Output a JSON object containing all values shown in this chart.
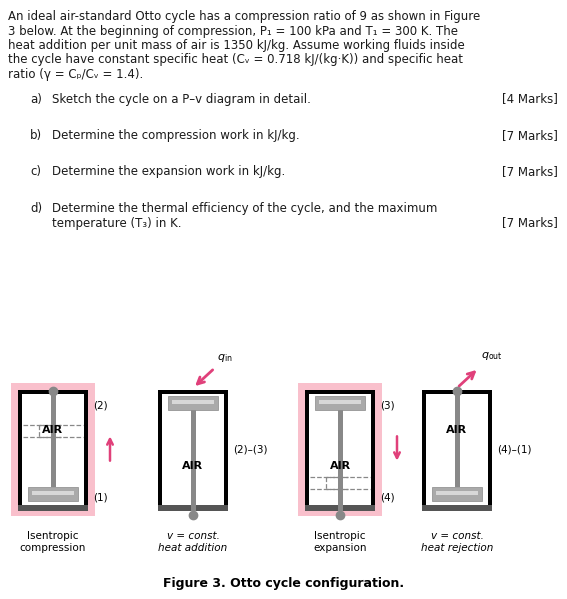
{
  "bg_color": "#FFFFFF",
  "text_color": "#1A1A1A",
  "pink_bg": "#F9C0CC",
  "arrow_color": "#E0407A",
  "piston_gray": "#AAAAAA",
  "piston_light": "#D8D8D8",
  "piston_dark": "#888888",
  "wall_color": "#000000",
  "title_lines": [
    "An ideal air-standard Otto cycle has a compression ratio of 9 as shown in Figure",
    "3 below. At the beginning of compression, P₁ = 100 kPa and T₁ = 300 K. The",
    "heat addition per unit mass of air is 1350 kJ/kg. Assume working fluids inside",
    "the cycle have constant specific heat (Cᵥ = 0.718 kJ/(kg·K)) and specific heat",
    "ratio (γ = Cₚ/Cᵥ = 1.4)."
  ],
  "questions": [
    {
      "label": "a)",
      "text": "Sketch the cycle on a P–v diagram in detail.",
      "marks": "[4 Marks]",
      "two_lines": false
    },
    {
      "label": "b)",
      "text": "Determine the compression work in kJ/kg.",
      "marks": "[7 Marks]",
      "two_lines": false
    },
    {
      "label": "c)",
      "text": "Determine the expansion work in kJ/kg.",
      "marks": "[7 Marks]",
      "two_lines": false
    },
    {
      "label": "d)",
      "text": "Determine the thermal efficiency of the cycle, and the maximum\ntemperature (T₃) in K.",
      "marks": "[7 Marks]",
      "two_lines": true
    }
  ],
  "figure_caption": "Figure 3. Otto cycle configuration."
}
